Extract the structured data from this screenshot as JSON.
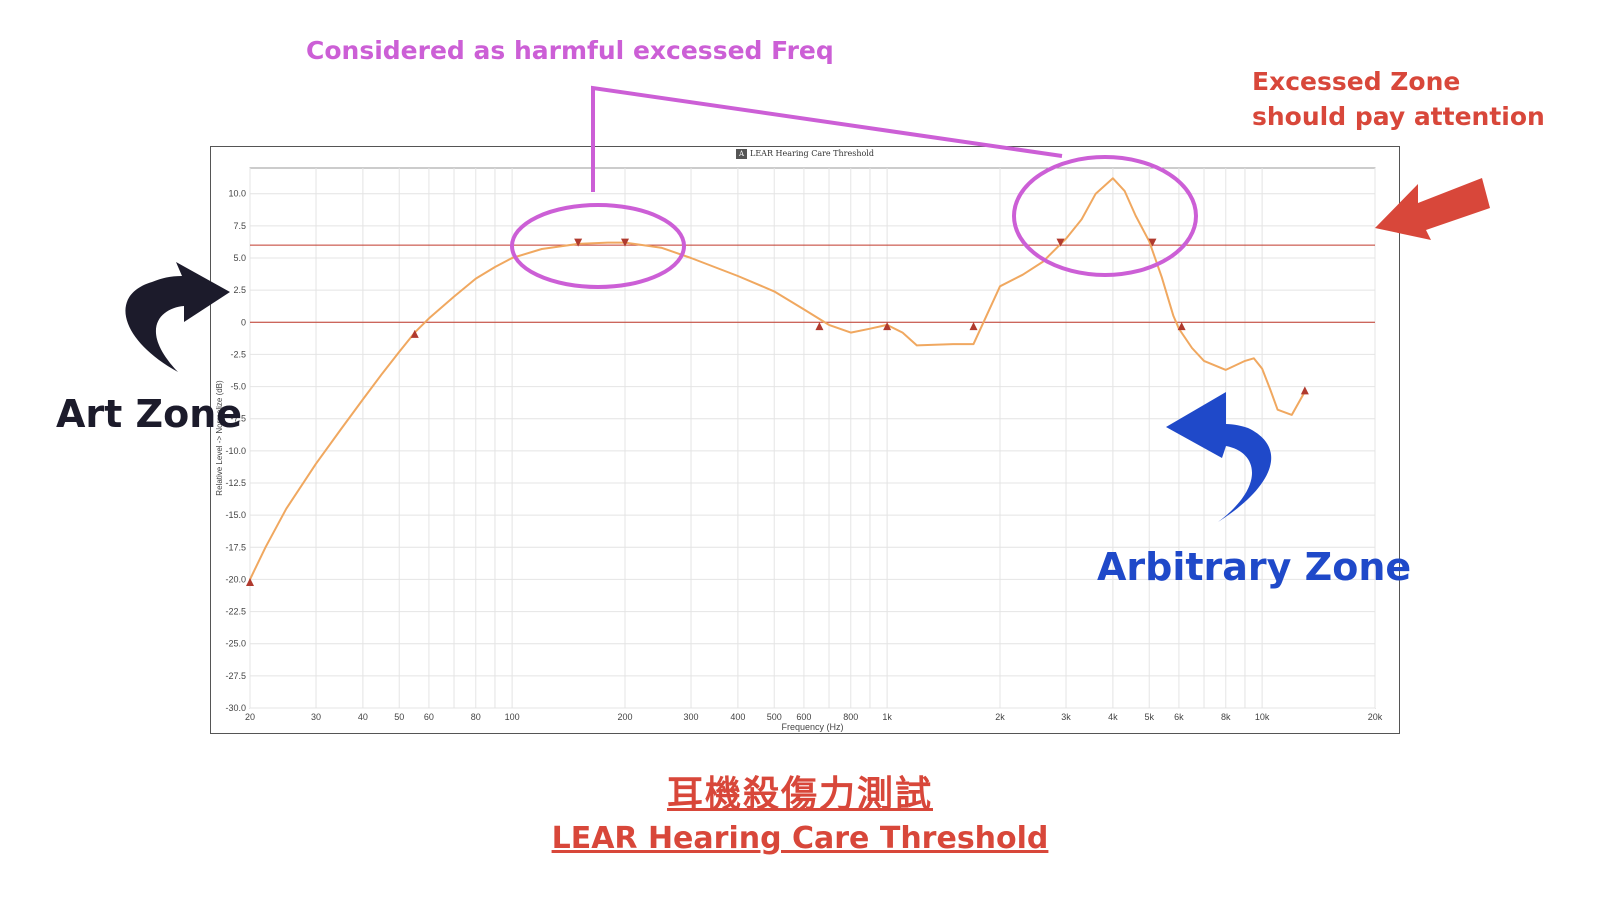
{
  "annotations": {
    "harmful": "Considered as harmful excessed Freq",
    "excessed_line1": "Excessed Zone",
    "excessed_line2": "should pay attention",
    "art_zone": "Art Zone",
    "arbitrary_zone": "Arbitrary Zone"
  },
  "bottom_title": {
    "chinese": "耳機殺傷力測試",
    "english": "LEAR Hearing Care Threshold"
  },
  "colors": {
    "curve": "#f0a860",
    "threshold_line": "#c0392b",
    "marker": "#b03a2e",
    "harmful_annotation": "#cc5fd6",
    "excessed_annotation": "#d8473a",
    "art_zone_annotation": "#1c1b2b",
    "arbitrary_zone_annotation": "#1f49c9"
  },
  "chart_data": {
    "type": "line",
    "title": "LEAR Hearing Care Threshold",
    "xlabel": "Frequency (Hz)",
    "ylabel": "Relative Level -> Normalize (dB)",
    "x_scale": "log",
    "xlim": [
      20,
      20000
    ],
    "ylim": [
      -30,
      12
    ],
    "grid": true,
    "logo": "AP",
    "x_ticks": [
      {
        "v": 20,
        "label": "20"
      },
      {
        "v": 30,
        "label": "30"
      },
      {
        "v": 40,
        "label": "40"
      },
      {
        "v": 50,
        "label": "50"
      },
      {
        "v": 60,
        "label": "60"
      },
      {
        "v": 80,
        "label": "80"
      },
      {
        "v": 100,
        "label": "100"
      },
      {
        "v": 200,
        "label": "200"
      },
      {
        "v": 300,
        "label": "300"
      },
      {
        "v": 400,
        "label": "400"
      },
      {
        "v": 500,
        "label": "500"
      },
      {
        "v": 600,
        "label": "600"
      },
      {
        "v": 800,
        "label": "800"
      },
      {
        "v": 1000,
        "label": "1k"
      },
      {
        "v": 2000,
        "label": "2k"
      },
      {
        "v": 3000,
        "label": "3k"
      },
      {
        "v": 4000,
        "label": "4k"
      },
      {
        "v": 5000,
        "label": "5k"
      },
      {
        "v": 6000,
        "label": "6k"
      },
      {
        "v": 8000,
        "label": "8k"
      },
      {
        "v": 10000,
        "label": "10k"
      },
      {
        "v": 20000,
        "label": "20k"
      }
    ],
    "y_ticks": [
      {
        "v": 10,
        "label": "10.0"
      },
      {
        "v": 7.5,
        "label": "7.5"
      },
      {
        "v": 5,
        "label": "5.0"
      },
      {
        "v": 2.5,
        "label": "2.5"
      },
      {
        "v": 0,
        "label": "0"
      },
      {
        "v": -2.5,
        "label": "-2.5"
      },
      {
        "v": -5,
        "label": "-5.0"
      },
      {
        "v": -7.5,
        "label": "-7.5"
      },
      {
        "v": -10,
        "label": "-10.0"
      },
      {
        "v": -12.5,
        "label": "-12.5"
      },
      {
        "v": -15,
        "label": "-15.0"
      },
      {
        "v": -17.5,
        "label": "-17.5"
      },
      {
        "v": -20,
        "label": "-20.0"
      },
      {
        "v": -22.5,
        "label": "-22.5"
      },
      {
        "v": -25,
        "label": "-25.0"
      },
      {
        "v": -27.5,
        "label": "-27.5"
      },
      {
        "v": -30,
        "label": "-30.0"
      }
    ],
    "threshold_lines": [
      6,
      0
    ],
    "series": [
      {
        "x": [
          20,
          22,
          25,
          30,
          35,
          40,
          45,
          50,
          55,
          60,
          70,
          80,
          90,
          100,
          120,
          150,
          180,
          200,
          250,
          300,
          400,
          500,
          600,
          700,
          800,
          900,
          1000,
          1100,
          1200,
          1500,
          1700,
          2000,
          2300,
          2600,
          3000,
          3300,
          3600,
          4000,
          4300,
          4600,
          5000,
          5400,
          5800,
          6000,
          6500,
          7000,
          8000,
          9000,
          9500,
          10000,
          10500,
          11000,
          12000,
          13000
        ],
        "y": [
          -20,
          -17.5,
          -14.5,
          -11,
          -8.3,
          -6,
          -4,
          -2.3,
          -0.8,
          0.3,
          2,
          3.4,
          4.3,
          5,
          5.7,
          6.1,
          6.2,
          6.2,
          5.8,
          5,
          3.6,
          2.4,
          1,
          -0.2,
          -0.8,
          -0.5,
          -0.2,
          -0.8,
          -1.8,
          -1.7,
          -1.7,
          2.8,
          3.7,
          4.7,
          6.5,
          8,
          10,
          11.2,
          10.2,
          8.3,
          6.3,
          3.5,
          0.5,
          -0.5,
          -2,
          -3,
          -3.7,
          -3,
          -2.8,
          -3.6,
          -5.2,
          -6.8,
          -7.2,
          -5.4
        ]
      }
    ],
    "markers": [
      {
        "x": 20,
        "y": -20.2,
        "dir": "up"
      },
      {
        "x": 55,
        "y": -0.9,
        "dir": "up"
      },
      {
        "x": 150,
        "y": 6.2,
        "dir": "down"
      },
      {
        "x": 200,
        "y": 6.2,
        "dir": "down"
      },
      {
        "x": 660,
        "y": -0.3,
        "dir": "up"
      },
      {
        "x": 1000,
        "y": -0.3,
        "dir": "up"
      },
      {
        "x": 1700,
        "y": -0.3,
        "dir": "up"
      },
      {
        "x": 2900,
        "y": 6.2,
        "dir": "down"
      },
      {
        "x": 5100,
        "y": 6.2,
        "dir": "down"
      },
      {
        "x": 6100,
        "y": -0.3,
        "dir": "up"
      },
      {
        "x": 13000,
        "y": -5.3,
        "dir": "up"
      }
    ]
  }
}
